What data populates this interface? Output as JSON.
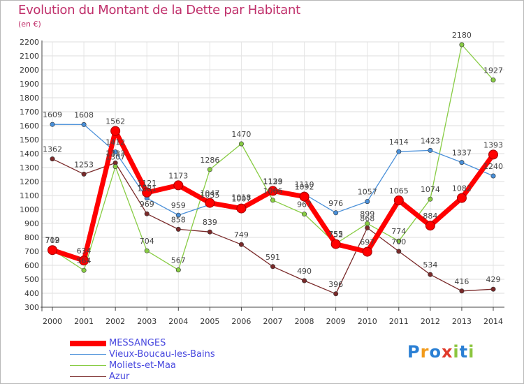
{
  "title": "Evolution du Montant de la Dette par Habitant",
  "subtitle": "(en €)",
  "brand": {
    "letters": [
      "P",
      "r",
      "o",
      "x",
      "i",
      "t",
      "i"
    ],
    "colors": [
      "#2a7fd4",
      "#f29a1a",
      "#2a7fd4",
      "#e03a2a",
      "#8cc63f",
      "#2a7fd4",
      "#8cc63f"
    ]
  },
  "chart_data": {
    "type": "line",
    "x": [
      "2000",
      "2001",
      "2002",
      "2003",
      "2004",
      "2005",
      "2006",
      "2007",
      "2008",
      "2009",
      "2010",
      "2011",
      "2012",
      "2013",
      "2014"
    ],
    "ylim": [
      300,
      2200
    ],
    "yticks": [
      "300",
      "400",
      "500",
      "600",
      "700",
      "800",
      "900",
      "1000",
      "1100",
      "1200",
      "1300",
      "1400",
      "1500",
      "1600",
      "1700",
      "1800",
      "1900",
      "2000",
      "2100",
      "2200"
    ],
    "grid": true,
    "legend_position": "bottom-left",
    "series": [
      {
        "name": "MESSANGES",
        "color": "#ff0000",
        "values": [
          709,
          634,
          1562,
          1121,
          1173,
          1047,
          1007,
          1133,
          1092,
          752,
          697,
          1065,
          884,
          1082,
          1393
        ],
        "labels": [
          "709",
          "634",
          "1562",
          "1121",
          "1173",
          "1047",
          "1007",
          "1133",
          "1092",
          "752",
          "697",
          "1065",
          "884",
          "1082",
          "1393"
        ]
      },
      {
        "name": "Vieux-Boucau-les-Bains",
        "color": "#4a90d9",
        "values": [
          1609,
          1608,
          1412,
          1081,
          959,
          1035,
          1018,
          1129,
          1110,
          976,
          1057,
          1414,
          1423,
          1337,
          1240
        ],
        "labels": [
          "1609",
          "1608",
          "1412",
          "1081",
          "959",
          "1035",
          "1018",
          "1129",
          "1110",
          "976",
          "1057",
          "1414",
          "1423",
          "1337",
          "1240"
        ]
      },
      {
        "name": "Moliets-et-Maa",
        "color": "#88cc44",
        "values": [
          712,
          564,
          1307,
          704,
          567,
          1286,
          1470,
          1066,
          967,
          755,
          899,
          774,
          1074,
          2180,
          1927
        ],
        "labels": [
          "712",
          "564",
          "1307",
          "704",
          "567",
          "1286",
          "1470",
          "1066",
          "967",
          "755",
          "899",
          "774",
          "1074",
          "2180",
          "1927"
        ]
      },
      {
        "name": "Azur",
        "color": "#7a2a2a",
        "values": [
          1362,
          1253,
          1333,
          969,
          858,
          839,
          749,
          591,
          490,
          396,
          868,
          700,
          534,
          416,
          429
        ],
        "labels": [
          "1362",
          "1253",
          "1333",
          "969",
          "858",
          "839",
          "749",
          "591",
          "490",
          "396",
          "868",
          "700",
          "534",
          "416",
          "429"
        ]
      }
    ]
  }
}
